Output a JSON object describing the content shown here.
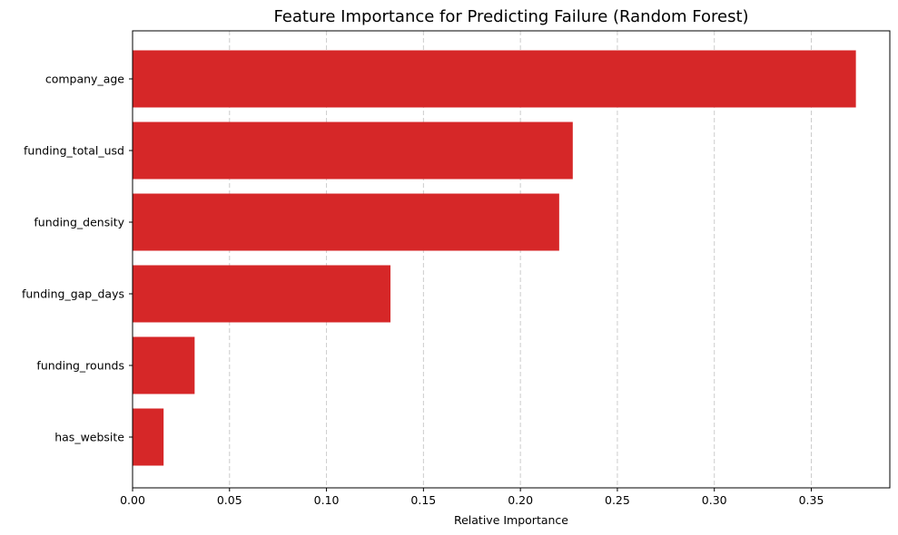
{
  "chart_data": {
    "type": "bar",
    "orientation": "horizontal",
    "title": "Feature Importance for Predicting Failure (Random Forest)",
    "xlabel": "Relative Importance",
    "ylabel": "",
    "categories": [
      "company_age",
      "funding_total_usd",
      "funding_density",
      "funding_gap_days",
      "funding_rounds",
      "has_website"
    ],
    "values": [
      0.373,
      0.227,
      0.22,
      0.133,
      0.032,
      0.016
    ],
    "xlim": [
      0,
      0.3905
    ],
    "xticks": [
      0.0,
      0.05,
      0.1,
      0.15,
      0.2,
      0.25,
      0.3,
      0.35
    ],
    "xtick_labels": [
      "0.00",
      "0.05",
      "0.10",
      "0.15",
      "0.20",
      "0.25",
      "0.30",
      "0.35"
    ],
    "grid": "x, dashed",
    "bar_color": "#d62728",
    "grid_color": "#cccccc"
  }
}
